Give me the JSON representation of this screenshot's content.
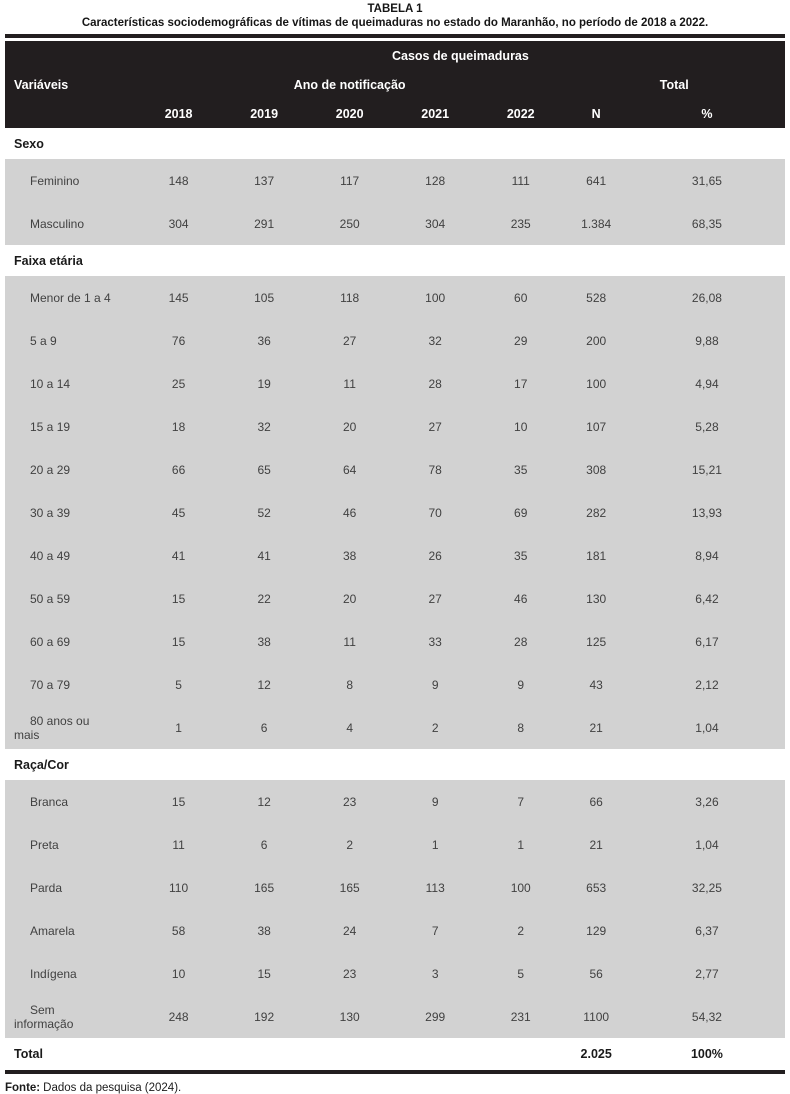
{
  "title": "TABELA 1",
  "subtitle": "Características sociodemográficas de vítimas de queimaduras no estado do Maranhão, no período de 2018 a 2022.",
  "table": {
    "group_header": "Casos de queimaduras",
    "variables_label": "Variáveis",
    "year_group_label": "Ano de notificação",
    "total_group_label": "Total",
    "year_columns": [
      "2018",
      "2019",
      "2020",
      "2021",
      "2022"
    ],
    "n_label": "N",
    "pct_label": "%",
    "sections": [
      {
        "name": "Sexo",
        "rows": [
          {
            "label": "Feminino",
            "values": [
              "148",
              "137",
              "117",
              "128",
              "111",
              "641",
              "31,65"
            ]
          },
          {
            "label": "Masculino",
            "values": [
              "304",
              "291",
              "250",
              "304",
              "235",
              "1.384",
              "68,35"
            ]
          }
        ]
      },
      {
        "name": "Faixa etária",
        "rows": [
          {
            "label": "Menor de 1 a 4",
            "values": [
              "145",
              "105",
              "118",
              "100",
              "60",
              "528",
              "26,08"
            ]
          },
          {
            "label": "5 a 9",
            "values": [
              "76",
              "36",
              "27",
              "32",
              "29",
              "200",
              "9,88"
            ]
          },
          {
            "label": "10 a 14",
            "values": [
              "25",
              "19",
              "11",
              "28",
              "17",
              "100",
              "4,94"
            ]
          },
          {
            "label": "15 a 19",
            "values": [
              "18",
              "32",
              "20",
              "27",
              "10",
              "107",
              "5,28"
            ]
          },
          {
            "label": "20 a 29",
            "values": [
              "66",
              "65",
              "64",
              "78",
              "35",
              "308",
              "15,21"
            ]
          },
          {
            "label": "30 a 39",
            "values": [
              "45",
              "52",
              "46",
              "70",
              "69",
              "282",
              "13,93"
            ]
          },
          {
            "label": "40 a 49",
            "values": [
              "41",
              "41",
              "38",
              "26",
              "35",
              "181",
              "8,94"
            ]
          },
          {
            "label": "50 a 59",
            "values": [
              "15",
              "22",
              "20",
              "27",
              "46",
              "130",
              "6,42"
            ]
          },
          {
            "label": "60 a 69",
            "values": [
              "15",
              "38",
              "11",
              "33",
              "28",
              "125",
              "6,17"
            ]
          },
          {
            "label": "70 a 79",
            "values": [
              "5",
              "12",
              "8",
              "9",
              "9",
              "43",
              "2,12"
            ]
          },
          {
            "label": "80 anos ou\nmais",
            "values": [
              "1",
              "6",
              "4",
              "2",
              "8",
              "21",
              "1,04"
            ]
          }
        ]
      },
      {
        "name": "Raça/Cor",
        "rows": [
          {
            "label": "Branca",
            "values": [
              "15",
              "12",
              "23",
              "9",
              "7",
              "66",
              "3,26"
            ]
          },
          {
            "label": "Preta",
            "values": [
              "11",
              "6",
              "2",
              "1",
              "1",
              "21",
              "1,04"
            ]
          },
          {
            "label": "Parda",
            "values": [
              "110",
              "165",
              "165",
              "113",
              "100",
              "653",
              "32,25"
            ]
          },
          {
            "label": "Amarela",
            "values": [
              "58",
              "38",
              "24",
              "7",
              "2",
              "129",
              "6,37"
            ]
          },
          {
            "label": "Indígena",
            "values": [
              "10",
              "15",
              "23",
              "3",
              "5",
              "56",
              "2,77"
            ]
          },
          {
            "label": "Sem\ninformação",
            "values": [
              "248",
              "192",
              "130",
              "299",
              "231",
              "1100",
              "54,32"
            ]
          }
        ]
      }
    ],
    "total_row": {
      "label": "Total",
      "values": [
        "",
        "",
        "",
        "",
        "",
        "2.025",
        "100%"
      ]
    }
  },
  "footer": {
    "source_label": "Fonte:",
    "source_text": "Dados da pesquisa (2024)."
  },
  "colors": {
    "header_bg": "#221e1f",
    "row_bg": "#d2d2d2",
    "rule": "#221e1f",
    "body_text": "#414141",
    "heading_text": "#1a1a1a"
  }
}
